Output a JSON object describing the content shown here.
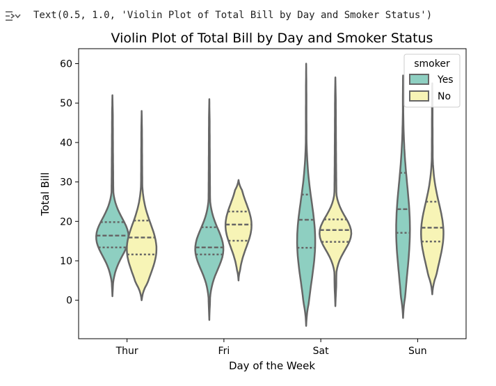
{
  "output": {
    "icon": "output-menu-icon",
    "text": "Text(0.5, 1.0, 'Violin Plot of Total Bill by Day and Smoker Status')"
  },
  "chart_data": {
    "type": "violin",
    "title": "Violin Plot of Total Bill by Day and Smoker Status",
    "xlabel": "Day of the Week",
    "ylabel": "Total Bill",
    "categories": [
      "Thur",
      "Fri",
      "Sat",
      "Sun"
    ],
    "ylim": [
      -10,
      65
    ],
    "yticks": [
      0,
      10,
      20,
      30,
      40,
      50,
      60
    ],
    "grid": false,
    "inner": "quartile",
    "legend": {
      "title": "smoker",
      "position": "top-right"
    },
    "colors": {
      "Yes": "#8ecfc1",
      "No": "#f7f4b6",
      "outline": "#666666"
    },
    "series": [
      {
        "name": "Yes",
        "violins": [
          {
            "min": 1,
            "max": 52,
            "q1": 13.4,
            "median": 16.4,
            "q3": 19.8,
            "peak": 16,
            "width": 0.9
          },
          {
            "min": -5,
            "max": 51,
            "q1": 11.6,
            "median": 13.4,
            "q3": 18.5,
            "peak": 13,
            "width": 0.78
          },
          {
            "min": -6.5,
            "max": 60,
            "q1": 13.3,
            "median": 20.4,
            "q3": 26.8,
            "peak": 15,
            "width": 0.5
          },
          {
            "min": -4.5,
            "max": 57,
            "q1": 17.1,
            "median": 23.1,
            "q3": 32.3,
            "peak": 18,
            "width": 0.38
          }
        ]
      },
      {
        "name": "No",
        "violins": [
          {
            "min": 0,
            "max": 48,
            "q1": 11.6,
            "median": 15.9,
            "q3": 20.2,
            "peak": 13,
            "width": 0.82
          },
          {
            "min": 5,
            "max": 30.5,
            "q1": 15.1,
            "median": 19.2,
            "q3": 22.5,
            "peak": 19,
            "width": 0.72
          },
          {
            "min": -1.5,
            "max": 56.5,
            "q1": 14.8,
            "median": 17.8,
            "q3": 20.5,
            "peak": 17,
            "width": 0.88
          },
          {
            "min": 1.5,
            "max": 55,
            "q1": 14.9,
            "median": 18.4,
            "q3": 25.0,
            "peak": 17,
            "width": 0.62
          }
        ]
      }
    ]
  }
}
